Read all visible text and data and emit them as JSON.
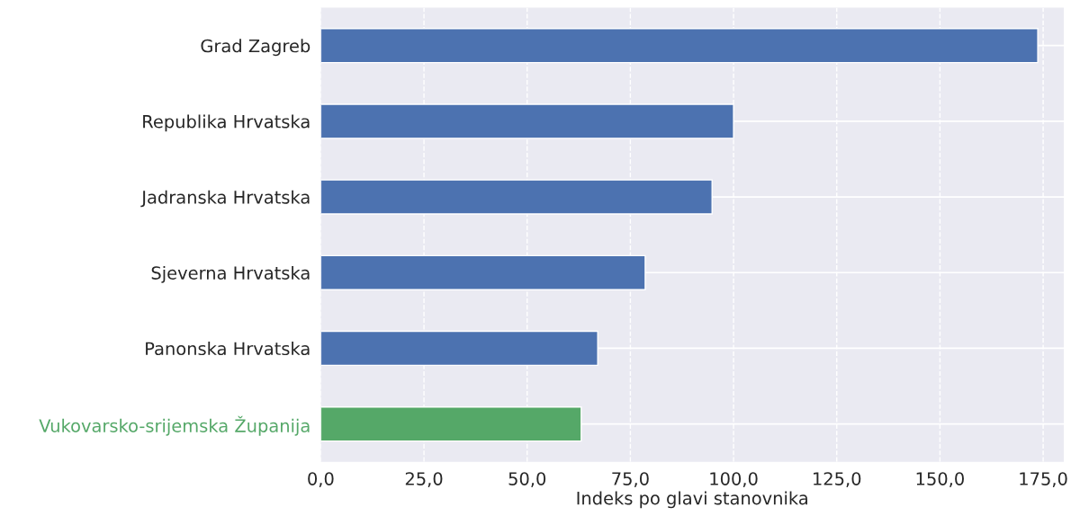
{
  "chart_data": {
    "type": "bar",
    "orientation": "horizontal",
    "xlabel": "Indeks po glavi stanovnika",
    "categories": [
      "Grad Zagreb",
      "Republika Hrvatska",
      "Jadranska Hrvatska",
      "Sjeverna Hrvatska",
      "Panonska Hrvatska",
      "Vukovarsko-srijemska Županija"
    ],
    "values": [
      173.7,
      100.0,
      94.8,
      78.6,
      67.1,
      63.1
    ],
    "colors": [
      "#4c72b0",
      "#4c72b0",
      "#4c72b0",
      "#4c72b0",
      "#4c72b0",
      "#55a868"
    ],
    "xlim": [
      0,
      180
    ],
    "xticks": [
      {
        "value": 0,
        "label": "0,0"
      },
      {
        "value": 25,
        "label": "25,0"
      },
      {
        "value": 50,
        "label": "50,0"
      },
      {
        "value": 75,
        "label": "75,0"
      },
      {
        "value": 100,
        "label": "100,0"
      },
      {
        "value": 125,
        "label": "125,0"
      },
      {
        "value": 150,
        "label": "150,0"
      },
      {
        "value": 175,
        "label": "175,0"
      }
    ],
    "grid": true
  }
}
